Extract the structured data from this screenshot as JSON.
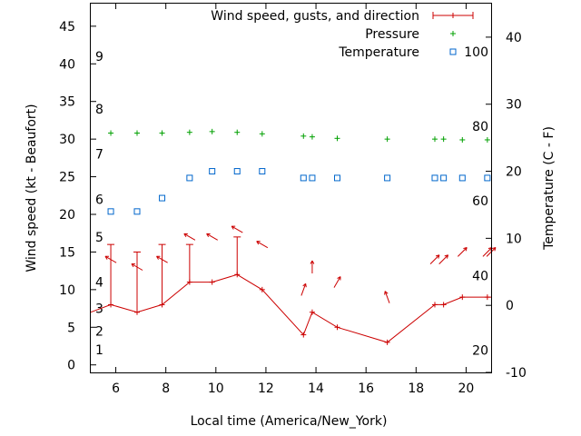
{
  "chart_data": {
    "type": "line",
    "xlabel": "Local time (America/New_York)",
    "ylabel": "Wind speed (kt - Beaufort)",
    "y2label": "Temperature (C - F)",
    "xlim": [
      5,
      21
    ],
    "ylim": [
      -1,
      48
    ],
    "y2lim": [
      -10,
      45
    ],
    "x_ticks": [
      6,
      8,
      10,
      12,
      14,
      16,
      18,
      20
    ],
    "y_ticks": [
      0,
      5,
      10,
      15,
      20,
      25,
      30,
      35,
      40,
      45
    ],
    "y2_ticks": [
      -10,
      0,
      10,
      20,
      30,
      40
    ],
    "beaufort_scale": [
      {
        "label": "1",
        "wind": 2
      },
      {
        "label": "2",
        "wind": 4.5
      },
      {
        "label": "3",
        "wind": 7.5
      },
      {
        "label": "4",
        "wind": 11
      },
      {
        "label": "5",
        "wind": 17
      },
      {
        "label": "6",
        "wind": 22
      },
      {
        "label": "7",
        "wind": 28
      },
      {
        "label": "8",
        "wind": 34
      },
      {
        "label": "9",
        "wind": 41
      }
    ],
    "fahrenheit_scale": [
      {
        "label": "20",
        "temp": -6.7
      },
      {
        "label": "40",
        "temp": 4.4
      },
      {
        "label": "60",
        "temp": 15.6
      },
      {
        "label": "80",
        "temp": 26.7
      },
      {
        "label": "100",
        "temp": 37.8
      }
    ],
    "legend": {
      "position": "top-right",
      "entries": [
        "Wind speed, gusts, and direction",
        "Pressure",
        "Temperature"
      ]
    },
    "series": [
      {
        "name": "Wind speed, gusts, and direction",
        "color": "#cc0000",
        "x": [
          5.0,
          5.8,
          6.85,
          7.85,
          8.95,
          9.85,
          10.85,
          11.85,
          13.5,
          13.85,
          14.85,
          16.85,
          18.75,
          19.1,
          19.85,
          20.85,
          21.0
        ],
        "values": [
          7,
          8,
          7,
          8,
          11,
          11,
          12,
          10,
          4,
          7,
          5,
          3,
          8,
          8,
          9,
          9,
          9
        ],
        "gusts": [
          null,
          16,
          15,
          16,
          16,
          null,
          17,
          null,
          null,
          null,
          null,
          null,
          null,
          null,
          null,
          null,
          null
        ],
        "direction_deg": [
          null,
          300,
          300,
          300,
          300,
          300,
          300,
          300,
          20,
          0,
          30,
          340,
          45,
          45,
          45,
          45,
          45
        ]
      },
      {
        "name": "Pressure",
        "color": "#00a000",
        "x": [
          5.8,
          6.85,
          7.85,
          8.95,
          9.85,
          10.85,
          11.85,
          13.5,
          13.85,
          14.85,
          16.85,
          18.75,
          19.1,
          19.85,
          20.85
        ],
        "values": [
          30.8,
          30.8,
          30.8,
          30.9,
          31.0,
          30.9,
          30.7,
          30.4,
          30.3,
          30.1,
          30.0,
          30.0,
          30.0,
          29.9,
          29.9
        ]
      },
      {
        "name": "Temperature",
        "color": "#0066cc",
        "x": [
          5.8,
          6.85,
          7.85,
          8.95,
          9.85,
          10.85,
          11.85,
          13.5,
          13.85,
          14.85,
          16.85,
          18.75,
          19.1,
          19.85,
          20.85
        ],
        "values": [
          14,
          14,
          16,
          19,
          20,
          20,
          20,
          19,
          19,
          19,
          19,
          19,
          19,
          19,
          19
        ]
      }
    ]
  }
}
